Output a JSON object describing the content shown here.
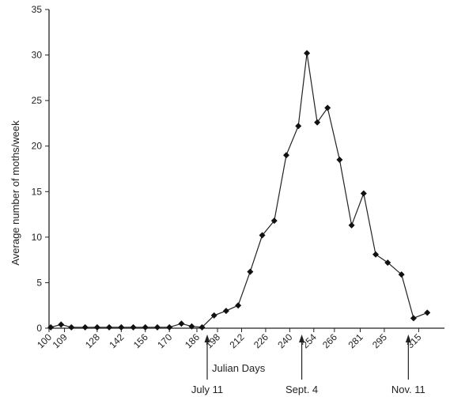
{
  "chart_data": {
    "type": "line",
    "title": "",
    "xlabel": "Julian Days",
    "ylabel": "Average number of moths/week",
    "xlim": [
      100,
      330
    ],
    "ylim": [
      0,
      35
    ],
    "x_ticks": [
      100,
      109,
      128,
      142,
      156,
      170,
      186,
      198,
      212,
      226,
      240,
      254,
      266,
      281,
      295,
      315
    ],
    "y_ticks": [
      0,
      5,
      10,
      15,
      20,
      25,
      30,
      35
    ],
    "grid": false,
    "legend": "none",
    "marker": "diamond",
    "line_color": "#222222",
    "series": [
      {
        "x": [
          101,
          107,
          113,
          121,
          128,
          135,
          142,
          149,
          156,
          163,
          170,
          177,
          183,
          189,
          196,
          203,
          210,
          217,
          224,
          231,
          238,
          245,
          250,
          256,
          262,
          269,
          276,
          283,
          290,
          297,
          305,
          312,
          320
        ],
        "y": [
          0.1,
          0.4,
          0.1,
          0.1,
          0.1,
          0.1,
          0.1,
          0.1,
          0.1,
          0.1,
          0.1,
          0.5,
          0.2,
          0.1,
          1.4,
          1.9,
          2.5,
          6.2,
          10.2,
          11.8,
          19.0,
          22.2,
          30.2,
          22.6,
          24.2,
          18.5,
          11.3,
          14.8,
          8.1,
          7.2,
          5.9,
          1.1,
          1.7
        ]
      }
    ],
    "annotations": [
      {
        "text": "July 11",
        "x": 192
      },
      {
        "text": "Sept. 4",
        "x": 247
      },
      {
        "text": "Nov. 11",
        "x": 309
      }
    ]
  }
}
